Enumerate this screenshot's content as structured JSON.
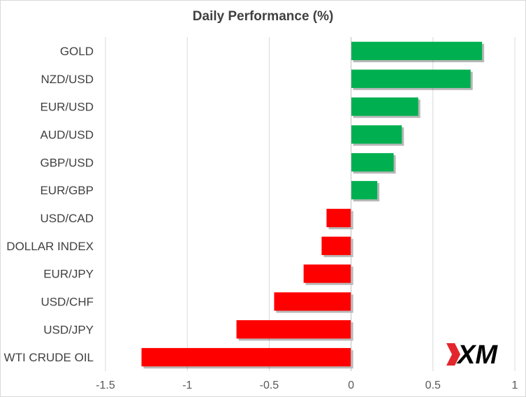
{
  "chart_data": {
    "type": "bar",
    "orientation": "horizontal",
    "title": "Daily Performance (%)",
    "xlabel": "",
    "ylabel": "",
    "categories": [
      "GOLD",
      "NZD/USD",
      "EUR/USD",
      "AUD/USD",
      "GBP/USD",
      "EUR/GBP",
      "USD/CAD",
      "DOLLAR INDEX",
      "EUR/JPY",
      "USD/CHF",
      "USD/JPY",
      "WTI CRUDE OIL"
    ],
    "values": [
      0.8,
      0.73,
      0.41,
      0.31,
      0.26,
      0.16,
      -0.15,
      -0.18,
      -0.29,
      -0.47,
      -0.7,
      -1.28
    ],
    "xlim": [
      -1.5,
      1
    ],
    "xticks": [
      -1.5,
      -1,
      -0.5,
      0,
      0.5,
      1
    ],
    "xtick_labels": [
      "-1.5",
      "-1",
      "-0.5",
      "0",
      "0.5",
      "1"
    ],
    "grid": true,
    "legend": "none",
    "colors": {
      "positive": "#00b050",
      "negative": "#ff0000"
    }
  },
  "logo": {
    "text": "XM",
    "accent": "#e3262d",
    "color": "#000000"
  }
}
